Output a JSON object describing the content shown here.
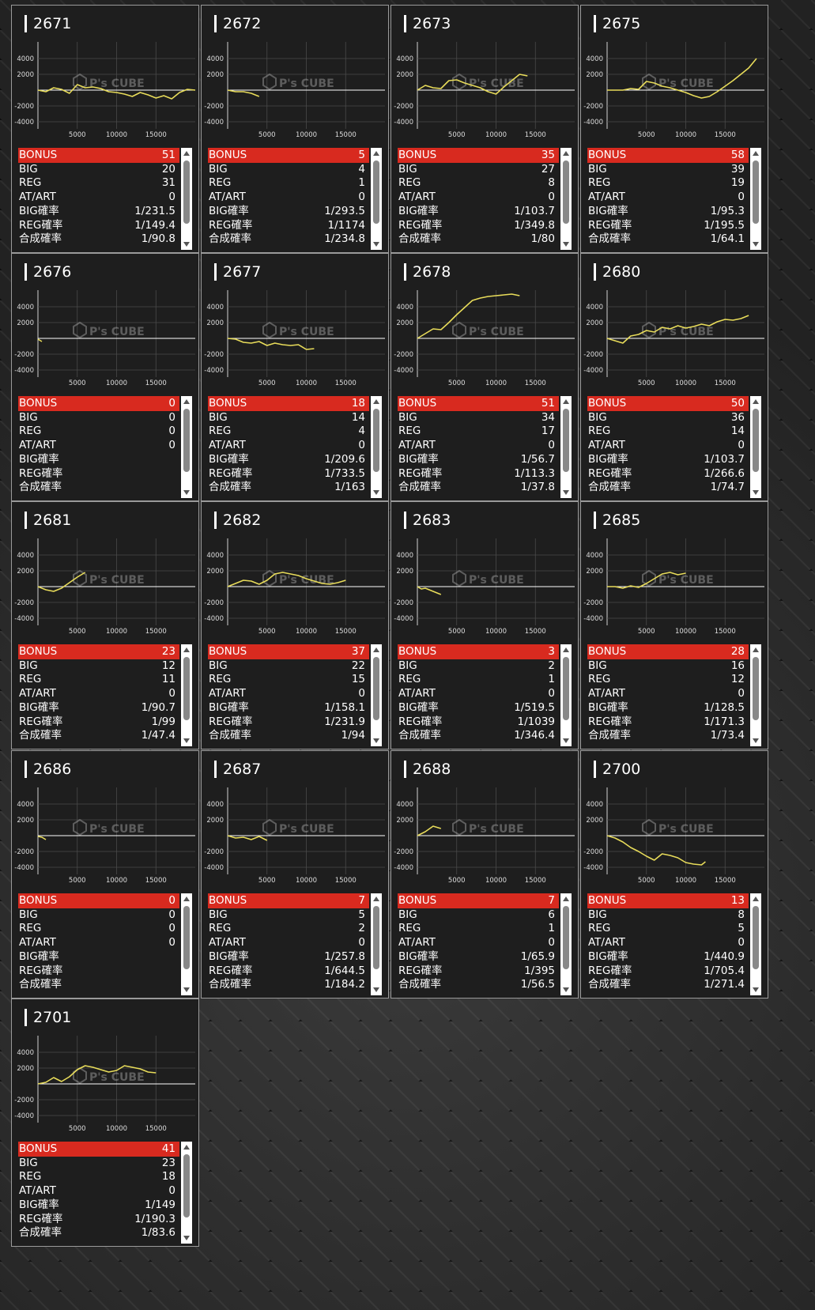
{
  "labels": {
    "bonus": "BONUS",
    "big": "BIG",
    "reg": "REG",
    "atart": "AT/ART",
    "big_prob": "BIG確率",
    "reg_prob": "REG確率",
    "total_prob": "合成確率"
  },
  "watermark": "P's CUBE",
  "colors": {
    "bonus_bar": "#d82a1f",
    "line": "#e8dc5a",
    "panel": "#1e1e1e",
    "border": "#9a9a9a"
  },
  "chart_axes": {
    "y_ticks": [
      "4000",
      "2000",
      "-2000",
      "-4000"
    ],
    "x_ticks": [
      "5000",
      "10000",
      "15000"
    ]
  },
  "machines": [
    {
      "id": "2671",
      "bonus": "51",
      "big": "20",
      "reg": "31",
      "atart": "0",
      "big_prob": "1/231.5",
      "reg_prob": "1/149.4",
      "total_prob": "1/90.8"
    },
    {
      "id": "2672",
      "bonus": "5",
      "big": "4",
      "reg": "1",
      "atart": "0",
      "big_prob": "1/293.5",
      "reg_prob": "1/1174",
      "total_prob": "1/234.8"
    },
    {
      "id": "2673",
      "bonus": "35",
      "big": "27",
      "reg": "8",
      "atart": "0",
      "big_prob": "1/103.7",
      "reg_prob": "1/349.8",
      "total_prob": "1/80"
    },
    {
      "id": "2675",
      "bonus": "58",
      "big": "39",
      "reg": "19",
      "atart": "0",
      "big_prob": "1/95.3",
      "reg_prob": "1/195.5",
      "total_prob": "1/64.1"
    },
    {
      "id": "2676",
      "bonus": "0",
      "big": "0",
      "reg": "0",
      "atart": "0",
      "big_prob": "",
      "reg_prob": "",
      "total_prob": ""
    },
    {
      "id": "2677",
      "bonus": "18",
      "big": "14",
      "reg": "4",
      "atart": "0",
      "big_prob": "1/209.6",
      "reg_prob": "1/733.5",
      "total_prob": "1/163"
    },
    {
      "id": "2678",
      "bonus": "51",
      "big": "34",
      "reg": "17",
      "atart": "0",
      "big_prob": "1/56.7",
      "reg_prob": "1/113.3",
      "total_prob": "1/37.8"
    },
    {
      "id": "2680",
      "bonus": "50",
      "big": "36",
      "reg": "14",
      "atart": "0",
      "big_prob": "1/103.7",
      "reg_prob": "1/266.6",
      "total_prob": "1/74.7"
    },
    {
      "id": "2681",
      "bonus": "23",
      "big": "12",
      "reg": "11",
      "atart": "0",
      "big_prob": "1/90.7",
      "reg_prob": "1/99",
      "total_prob": "1/47.4"
    },
    {
      "id": "2682",
      "bonus": "37",
      "big": "22",
      "reg": "15",
      "atart": "0",
      "big_prob": "1/158.1",
      "reg_prob": "1/231.9",
      "total_prob": "1/94"
    },
    {
      "id": "2683",
      "bonus": "3",
      "big": "2",
      "reg": "1",
      "atart": "0",
      "big_prob": "1/519.5",
      "reg_prob": "1/1039",
      "total_prob": "1/346.4"
    },
    {
      "id": "2685",
      "bonus": "28",
      "big": "16",
      "reg": "12",
      "atart": "0",
      "big_prob": "1/128.5",
      "reg_prob": "1/171.3",
      "total_prob": "1/73.4"
    },
    {
      "id": "2686",
      "bonus": "0",
      "big": "0",
      "reg": "0",
      "atart": "0",
      "big_prob": "",
      "reg_prob": "",
      "total_prob": ""
    },
    {
      "id": "2687",
      "bonus": "7",
      "big": "5",
      "reg": "2",
      "atart": "0",
      "big_prob": "1/257.8",
      "reg_prob": "1/644.5",
      "total_prob": "1/184.2"
    },
    {
      "id": "2688",
      "bonus": "7",
      "big": "6",
      "reg": "1",
      "atart": "0",
      "big_prob": "1/65.9",
      "reg_prob": "1/395",
      "total_prob": "1/56.5"
    },
    {
      "id": "2700",
      "bonus": "13",
      "big": "8",
      "reg": "5",
      "atart": "0",
      "big_prob": "1/440.9",
      "reg_prob": "1/705.4",
      "total_prob": "1/271.4"
    },
    {
      "id": "2701",
      "bonus": "41",
      "big": "23",
      "reg": "18",
      "atart": "0",
      "big_prob": "1/149",
      "reg_prob": "1/190.3",
      "total_prob": "1/83.6"
    }
  ],
  "chart_data": [
    {
      "type": "line",
      "title": "2671",
      "x": [
        0,
        1000,
        2000,
        3000,
        4000,
        5000,
        6000,
        7000,
        8000,
        9000,
        10000,
        11000,
        12000,
        13000,
        14000,
        15000,
        16000,
        17000,
        18000,
        19000,
        20000
      ],
      "y": [
        0,
        -200,
        300,
        100,
        -400,
        700,
        300,
        400,
        200,
        -200,
        -300,
        -500,
        -800,
        -300,
        -600,
        -1000,
        -700,
        -1100,
        -300,
        100,
        0
      ]
    },
    {
      "type": "line",
      "title": "2672",
      "x": [
        0,
        1000,
        2000,
        3000,
        4000
      ],
      "y": [
        0,
        -200,
        -200,
        -400,
        -800
      ]
    },
    {
      "type": "line",
      "title": "2673",
      "x": [
        0,
        1000,
        2000,
        3000,
        4000,
        5000,
        6000,
        7000,
        8000,
        9000,
        10000,
        11000,
        12000,
        13000,
        14000
      ],
      "y": [
        0,
        600,
        300,
        200,
        1200,
        1300,
        900,
        600,
        300,
        -200,
        -500,
        400,
        1200,
        2000,
        1800
      ]
    },
    {
      "type": "line",
      "title": "2675",
      "x": [
        0,
        1000,
        2000,
        3000,
        4000,
        5000,
        6000,
        7000,
        8000,
        9000,
        10000,
        11000,
        12000,
        13000,
        14000,
        15000,
        16000,
        17000,
        18000,
        19000
      ],
      "y": [
        0,
        0,
        0,
        200,
        100,
        1100,
        900,
        500,
        300,
        0,
        -300,
        -700,
        -1000,
        -800,
        -200,
        500,
        1200,
        2000,
        2800,
        4000
      ]
    },
    {
      "type": "line",
      "title": "2676",
      "x": [
        0,
        500
      ],
      "y": [
        -100,
        -400
      ]
    },
    {
      "type": "line",
      "title": "2677",
      "x": [
        0,
        1000,
        2000,
        3000,
        4000,
        5000,
        6000,
        7000,
        8000,
        9000,
        10000,
        11000
      ],
      "y": [
        0,
        -100,
        -500,
        -600,
        -400,
        -900,
        -600,
        -800,
        -900,
        -800,
        -1400,
        -1300
      ]
    },
    {
      "type": "line",
      "title": "2678",
      "x": [
        0,
        1000,
        2000,
        3000,
        4000,
        5000,
        6000,
        7000,
        8000,
        9000,
        10000,
        11000,
        12000,
        13000
      ],
      "y": [
        0,
        600,
        1200,
        1100,
        2000,
        3000,
        3900,
        4800,
        5100,
        5300,
        5400,
        5500,
        5600,
        5400
      ]
    },
    {
      "type": "line",
      "title": "2680",
      "x": [
        0,
        1000,
        2000,
        3000,
        4000,
        5000,
        6000,
        7000,
        8000,
        9000,
        10000,
        11000,
        12000,
        13000,
        14000,
        15000,
        16000,
        17000,
        18000
      ],
      "y": [
        0,
        -300,
        -600,
        300,
        500,
        1000,
        800,
        1400,
        1200,
        1600,
        1300,
        1500,
        1800,
        1600,
        2100,
        2400,
        2300,
        2500,
        2900
      ]
    },
    {
      "type": "line",
      "title": "2681",
      "x": [
        0,
        1000,
        2000,
        3000,
        4000,
        5000,
        6000
      ],
      "y": [
        0,
        -400,
        -600,
        -200,
        500,
        1200,
        1800
      ]
    },
    {
      "type": "line",
      "title": "2682",
      "x": [
        0,
        2000,
        3000,
        4000,
        5000,
        6000,
        7000,
        8000,
        9000,
        10000,
        11000,
        12000,
        13000,
        14000,
        15000
      ],
      "y": [
        0,
        800,
        700,
        300,
        800,
        1600,
        1800,
        1600,
        1400,
        1000,
        700,
        400,
        300,
        500,
        800
      ]
    },
    {
      "type": "line",
      "title": "2683",
      "x": [
        0,
        500,
        1000,
        2000,
        3000
      ],
      "y": [
        0,
        -300,
        -200,
        -600,
        -1000
      ]
    },
    {
      "type": "line",
      "title": "2685",
      "x": [
        0,
        1000,
        2000,
        3000,
        4000,
        5000,
        6000,
        7000,
        8000,
        9000,
        10000
      ],
      "y": [
        0,
        0,
        -200,
        100,
        -100,
        400,
        1000,
        1600,
        1800,
        1500,
        1700
      ]
    },
    {
      "type": "line",
      "title": "2686",
      "x": [
        0,
        500,
        1000
      ],
      "y": [
        -100,
        -200,
        -500
      ]
    },
    {
      "type": "line",
      "title": "2687",
      "x": [
        0,
        1000,
        2000,
        3000,
        4000,
        5000
      ],
      "y": [
        0,
        -300,
        -200,
        -500,
        -100,
        -600
      ]
    },
    {
      "type": "line",
      "title": "2688",
      "x": [
        0,
        1000,
        2000,
        3000
      ],
      "y": [
        0,
        500,
        1200,
        900
      ]
    },
    {
      "type": "line",
      "title": "2700",
      "x": [
        0,
        1000,
        2000,
        3000,
        4000,
        5000,
        6000,
        7000,
        8000,
        9000,
        10000,
        11000,
        12000,
        12500
      ],
      "y": [
        0,
        -300,
        -800,
        -1500,
        -2000,
        -2600,
        -3100,
        -2300,
        -2500,
        -2800,
        -3400,
        -3600,
        -3700,
        -3300
      ]
    },
    {
      "type": "line",
      "title": "2701",
      "x": [
        0,
        1000,
        2000,
        3000,
        4000,
        5000,
        6000,
        7000,
        8000,
        9000,
        10000,
        11000,
        12000,
        13000,
        14000,
        15000
      ],
      "y": [
        0,
        200,
        800,
        300,
        900,
        1800,
        2300,
        2100,
        1800,
        1500,
        1700,
        2300,
        2100,
        1900,
        1500,
        1400
      ]
    }
  ]
}
